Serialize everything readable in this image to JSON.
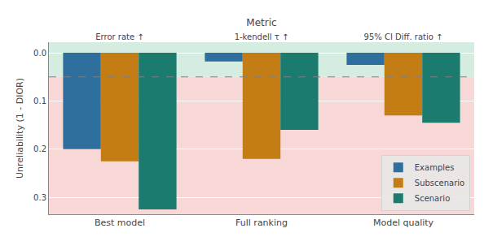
{
  "chart_data": {
    "type": "bar",
    "title": "Metric",
    "ylabel": "Unreliability (1 - DIOR)",
    "categories": [
      "Best model",
      "Full ranking",
      "Model quality"
    ],
    "top_labels": [
      "Error rate ↑",
      "1-kendell τ ↑",
      "95% CI Diff. ratio ↑"
    ],
    "series": [
      {
        "name": "Examples",
        "color": "#2e6f9e",
        "values": [
          0.2,
          0.018,
          0.025
        ]
      },
      {
        "name": "Subscenario",
        "color": "#c47d15",
        "values": [
          0.225,
          0.22,
          0.13
        ]
      },
      {
        "name": "Scenario",
        "color": "#1a7b6e",
        "values": [
          0.325,
          0.16,
          0.145
        ]
      }
    ],
    "ylim": [
      0.335,
      -0.022
    ],
    "yticks": [
      {
        "value": 0,
        "label": "0.0"
      },
      0.1,
      0.2,
      0.3
    ],
    "bands": [
      {
        "from": -0.022,
        "to": 0.05,
        "color": "#d4ede0"
      },
      {
        "from": 0.05,
        "to": 0.335,
        "color": "#f8d7d7"
      }
    ],
    "reference_line": {
      "y": 0.05,
      "color": "gray",
      "line_style": "dashed"
    },
    "legend": "lower right",
    "grid": true
  }
}
